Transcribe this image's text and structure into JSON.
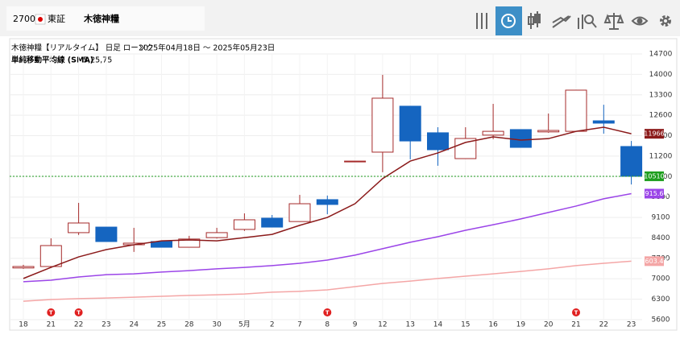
{
  "header": {
    "code": "2700",
    "market": "東証",
    "name": "木徳神糧"
  },
  "chart_data": {
    "type": "candlestick",
    "title": "木徳神糧【リアルタイム】 日足 ローソク",
    "period": "2025年04月18日 ～ 2025年05月23日",
    "indicator": "単純移動平均線 (SMA)",
    "indicator_params": "5,25,75",
    "categories": [
      "18",
      "21",
      "22",
      "23",
      "24",
      "25",
      "28",
      "30",
      "5月",
      "2",
      "7",
      "8",
      "9",
      "12",
      "13",
      "14",
      "15",
      "16",
      "19",
      "20",
      "21",
      "22",
      "23"
    ],
    "events": [
      null,
      "T",
      "T",
      null,
      null,
      null,
      null,
      null,
      null,
      null,
      null,
      "T",
      null,
      null,
      null,
      null,
      null,
      null,
      null,
      null,
      "T",
      null,
      null
    ],
    "open": [
      7370,
      7420,
      8580,
      8770,
      8165,
      8275,
      8080,
      8410,
      8690,
      9075,
      8960,
      9710,
      11030,
      11337,
      12910,
      12000,
      11115,
      11920,
      12110,
      12030,
      12050,
      12410,
      11530
    ],
    "high": [
      7480,
      8385,
      9600,
      8770,
      8745,
      8300,
      8470,
      8745,
      9240,
      9185,
      9875,
      9850,
      11030,
      13985,
      12910,
      12190,
      12190,
      12990,
      12110,
      12660,
      13460,
      12960,
      11720
    ],
    "low": [
      7340,
      7420,
      8500,
      8275,
      7920,
      8080,
      8080,
      8380,
      8640,
      8770,
      8960,
      9210,
      11030,
      10650,
      11090,
      10870,
      11115,
      11780,
      11500,
      12000,
      12050,
      11970,
      10230
    ],
    "close": [
      7420,
      8137,
      8910,
      8275,
      8220,
      8080,
      8360,
      8580,
      9020,
      8770,
      9570,
      9545,
      11030,
      13185,
      11720,
      11420,
      11805,
      12050,
      11500,
      12080,
      13460,
      12330,
      10510
    ],
    "up_color": "#a52a2a",
    "down_color": "#1565c0",
    "last_price_color": "#1e9e1e",
    "series": [
      {
        "color": "#8b1a1a",
        "values": [
          7010,
          7390,
          7750,
          8000,
          8165,
          8300,
          8330,
          8300,
          8410,
          8520,
          8830,
          9100,
          9570,
          10430,
          11030,
          11310,
          11670,
          11860,
          11750,
          11800,
          12050,
          12190,
          11966
        ]
      },
      {
        "color": "#9b45e8",
        "values": [
          6900,
          6950,
          7060,
          7140,
          7170,
          7230,
          7280,
          7340,
          7390,
          7450,
          7530,
          7640,
          7810,
          8030,
          8250,
          8440,
          8660,
          8850,
          9050,
          9270,
          9490,
          9740,
          9915.6
        ],
        "value_labels": [
          null,
          null,
          null,
          null,
          null,
          null,
          null,
          null,
          null,
          null,
          null,
          null,
          null,
          null,
          null,
          null,
          null,
          null,
          null,
          null,
          null,
          null,
          "9915.60"
        ]
      },
      {
        "color": "#f4a6a6",
        "values": [
          6230,
          6290,
          6320,
          6340,
          6370,
          6400,
          6430,
          6450,
          6480,
          6540,
          6570,
          6620,
          6730,
          6840,
          6920,
          7010,
          7090,
          7170,
          7250,
          7340,
          7450,
          7530,
          7603.47
        ]
      }
    ],
    "ylim": [
      5600,
      14700
    ],
    "yticks": [
      5600,
      6300,
      7000,
      7700,
      8400,
      9100,
      9800,
      10500,
      11200,
      11900,
      12600,
      13300,
      14000,
      14700
    ],
    "grid": true
  }
}
